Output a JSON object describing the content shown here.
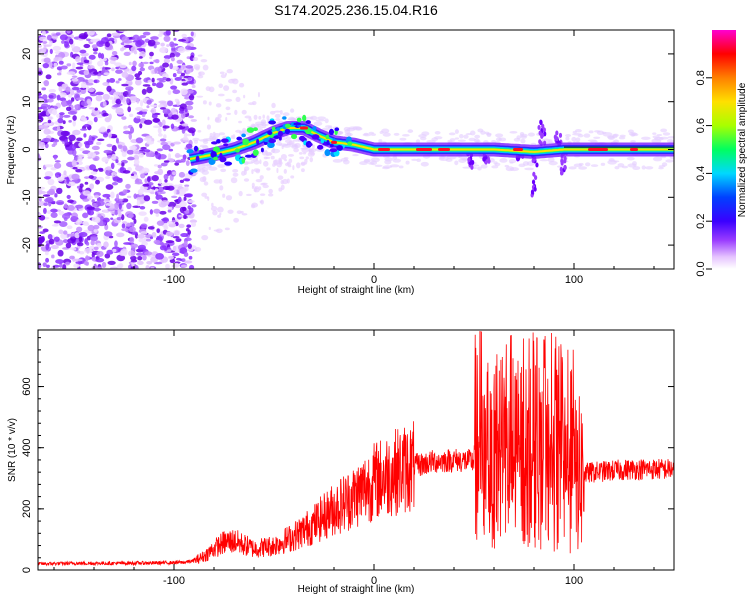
{
  "title": "S174.2025.236.15.04.R16",
  "chart_data": [
    {
      "type": "heatmap",
      "xlabel": "Height of straight line (km)",
      "ylabel": "Frequency (Hz)",
      "xlim": [
        -168,
        150
      ],
      "ylim": [
        -25,
        25
      ],
      "x_ticks": [
        -100,
        0,
        100
      ],
      "y_ticks": [
        -20,
        -10,
        0,
        10,
        20
      ],
      "colorbar": {
        "label": "Normalized spectral amplitude",
        "range": [
          0,
          1
        ],
        "ticks": [
          "0.0",
          "0.2",
          "0.4",
          "0.6",
          "0.8"
        ],
        "colors": [
          "#ffffff",
          "#dca0ff",
          "#6a00ff",
          "#0a1aff",
          "#00e0ff",
          "#00ff40",
          "#ffff00",
          "#ff7a00",
          "#ff0000",
          "#ff00ff"
        ]
      },
      "ridge": {
        "x": [
          -92,
          -80,
          -70,
          -60,
          -50,
          -43,
          -35,
          -28,
          -20,
          -10,
          0,
          20,
          40,
          60,
          80,
          95,
          110,
          130,
          150
        ],
        "freq": [
          -2,
          -1,
          0,
          1.5,
          3.5,
          4.5,
          4.5,
          3,
          1.5,
          1,
          0,
          0,
          0,
          0,
          -0.5,
          0,
          0,
          0,
          0
        ]
      }
    },
    {
      "type": "line",
      "xlabel": "Height of straight line (km)",
      "ylabel": "SNR (10 * v/v)",
      "xlim": [
        -168,
        150
      ],
      "ylim": [
        0,
        785
      ],
      "x_ticks": [
        -100,
        0,
        100
      ],
      "y_ticks": [
        0,
        200,
        400,
        600
      ],
      "series": [
        {
          "name": "SNR",
          "color": "#ff0000",
          "x": [
            -168,
            -150,
            -130,
            -110,
            -95,
            -90,
            -85,
            -80,
            -75,
            -70,
            -60,
            -50,
            -40,
            -30,
            -20,
            -10,
            0,
            10,
            20,
            30,
            40,
            50,
            60,
            70,
            80,
            90,
            100,
            110,
            130,
            150
          ],
          "values": [
            20,
            22,
            22,
            23,
            25,
            30,
            45,
            70,
            90,
            95,
            70,
            80,
            110,
            150,
            200,
            240,
            290,
            320,
            340,
            355,
            360,
            355,
            330,
            320,
            330,
            320,
            310,
            320,
            330,
            330
          ]
        }
      ]
    }
  ]
}
